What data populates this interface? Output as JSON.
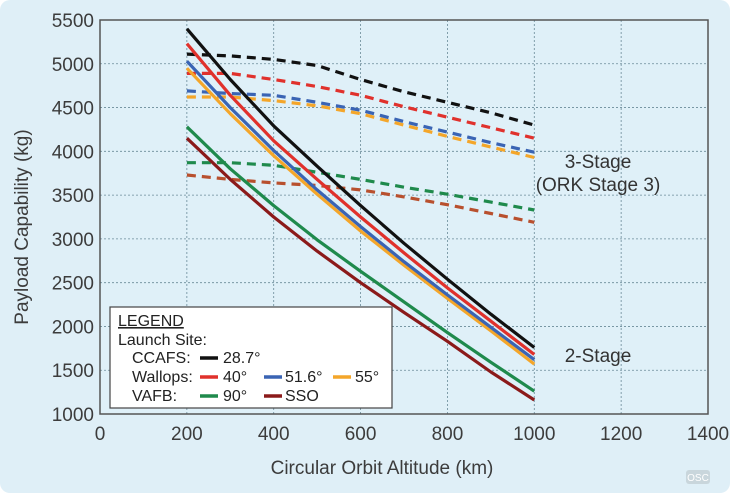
{
  "chart_data": {
    "type": "line",
    "title": "",
    "xlabel": "Circular Orbit Altitude (km)",
    "ylabel": "Payload Capability (kg)",
    "xlim": [
      0,
      1400
    ],
    "ylim": [
      1000,
      5500
    ],
    "xticks": [
      0,
      200,
      400,
      600,
      800,
      1000,
      1200,
      1400
    ],
    "yticks": [
      1000,
      1500,
      2000,
      2500,
      3000,
      3500,
      4000,
      4500,
      5000,
      5500
    ],
    "grid": true,
    "colors": {
      "black": "#111111",
      "red": "#e0312c",
      "blue": "#3a64b4",
      "orange": "#f4a62a",
      "green": "#1f8a4c",
      "darkred": "#8b1a1a",
      "darkorange": "#b8502e"
    },
    "series": [
      {
        "name": "28.7°",
        "stage": "3-Stage",
        "style": "dashed",
        "color": "#111111",
        "x": [
          200,
          300,
          400,
          500,
          600,
          700,
          800,
          900,
          1000
        ],
        "y": [
          5110,
          5090,
          5050,
          4980,
          4820,
          4680,
          4560,
          4440,
          4300
        ]
      },
      {
        "name": "40°",
        "stage": "3-Stage",
        "style": "dashed",
        "color": "#e0312c",
        "x": [
          200,
          300,
          400,
          500,
          600,
          700,
          800,
          900,
          1000
        ],
        "y": [
          4890,
          4890,
          4820,
          4740,
          4640,
          4510,
          4390,
          4270,
          4150
        ]
      },
      {
        "name": "51.6°",
        "stage": "3-Stage",
        "style": "dashed",
        "color": "#3a64b4",
        "x": [
          200,
          300,
          400,
          500,
          600,
          700,
          800,
          900,
          1000
        ],
        "y": [
          4690,
          4660,
          4640,
          4560,
          4470,
          4340,
          4220,
          4100,
          3990
        ]
      },
      {
        "name": "55°",
        "stage": "3-Stage",
        "style": "dashed",
        "color": "#f4a62a",
        "x": [
          200,
          300,
          400,
          500,
          600,
          700,
          800,
          900,
          1000
        ],
        "y": [
          4620,
          4620,
          4580,
          4520,
          4430,
          4300,
          4170,
          4050,
          3930
        ]
      },
      {
        "name": "90°",
        "stage": "3-Stage",
        "style": "dashed",
        "color": "#1f8a4c",
        "x": [
          200,
          300,
          400,
          500,
          600,
          700,
          800,
          900,
          1000
        ],
        "y": [
          3870,
          3870,
          3840,
          3760,
          3680,
          3590,
          3510,
          3420,
          3330
        ]
      },
      {
        "name": "SSO",
        "stage": "3-Stage",
        "style": "dashed",
        "color": "#b8502e",
        "x": [
          200,
          300,
          400,
          500,
          600,
          700,
          800,
          900,
          1000
        ],
        "y": [
          3730,
          3680,
          3640,
          3610,
          3560,
          3480,
          3390,
          3290,
          3190
        ]
      },
      {
        "name": "28.7°",
        "stage": "2-Stage",
        "style": "solid",
        "color": "#111111",
        "x": [
          200,
          300,
          400,
          500,
          600,
          700,
          800,
          900,
          1000
        ],
        "y": [
          5400,
          4820,
          4290,
          3830,
          3380,
          2950,
          2540,
          2140,
          1760
        ]
      },
      {
        "name": "40°",
        "stage": "2-Stage",
        "style": "solid",
        "color": "#e0312c",
        "x": [
          200,
          300,
          400,
          500,
          600,
          700,
          800,
          900,
          1000
        ],
        "y": [
          5230,
          4640,
          4120,
          3680,
          3250,
          2840,
          2440,
          2060,
          1680
        ]
      },
      {
        "name": "51.6°",
        "stage": "2-Stage",
        "style": "solid",
        "color": "#3a64b4",
        "x": [
          200,
          300,
          400,
          500,
          600,
          700,
          800,
          900,
          1000
        ],
        "y": [
          5030,
          4500,
          4010,
          3560,
          3140,
          2740,
          2360,
          1990,
          1620
        ]
      },
      {
        "name": "55°",
        "stage": "2-Stage",
        "style": "solid",
        "color": "#f4a62a",
        "x": [
          200,
          300,
          400,
          500,
          600,
          700,
          800,
          900,
          1000
        ],
        "y": [
          4950,
          4430,
          3950,
          3510,
          3090,
          2700,
          2320,
          1950,
          1570
        ]
      },
      {
        "name": "90°",
        "stage": "2-Stage",
        "style": "solid",
        "color": "#1f8a4c",
        "x": [
          200,
          300,
          400,
          500,
          600,
          700,
          800,
          900,
          1000
        ],
        "y": [
          4280,
          3800,
          3380,
          2990,
          2630,
          2280,
          1930,
          1590,
          1260
        ]
      },
      {
        "name": "SSO",
        "stage": "2-Stage",
        "style": "solid",
        "color": "#8b1a1a",
        "x": [
          200,
          300,
          400,
          500,
          600,
          700,
          800,
          900,
          1000
        ],
        "y": [
          4150,
          3680,
          3250,
          2860,
          2500,
          2160,
          1830,
          1480,
          1160
        ]
      }
    ],
    "annotations": [
      "3-Stage",
      "(ORK Stage 3)",
      "2-Stage"
    ],
    "legend": {
      "title": "LEGEND",
      "placement": "bottom-left",
      "subtitle": "Launch Site:",
      "rows": [
        {
          "site": "CCAFS:",
          "entries": [
            {
              "label": "28.7°",
              "color": "#111111"
            }
          ]
        },
        {
          "site": "Wallops:",
          "entries": [
            {
              "label": "40°",
              "color": "#e0312c"
            },
            {
              "label": "51.6°",
              "color": "#3a64b4"
            },
            {
              "label": "55°",
              "color": "#f4a62a"
            }
          ]
        },
        {
          "site": "VAFB:",
          "entries": [
            {
              "label": "90°",
              "color": "#1f8a4c"
            },
            {
              "label": "SSO",
              "color": "#8b1a1a"
            }
          ]
        }
      ]
    }
  },
  "watermark": "OSC"
}
